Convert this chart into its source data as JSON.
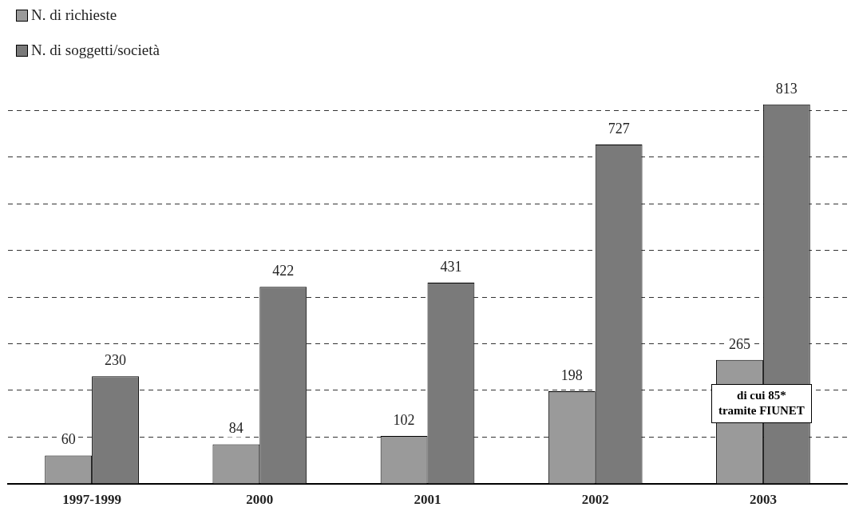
{
  "chart_data": {
    "type": "bar",
    "categories": [
      "1997-1999",
      "2000",
      "2001",
      "2002",
      "2003"
    ],
    "series": [
      {
        "name": "N. di richieste",
        "color": "#9a9a9a",
        "values": [
          60,
          84,
          102,
          198,
          265
        ]
      },
      {
        "name": "N. di soggetti/società",
        "color": "#7a7a7a",
        "values": [
          230,
          422,
          431,
          727,
          813
        ]
      }
    ],
    "data_labels": true,
    "yticks": [
      {
        "value": 100,
        "label": null
      },
      {
        "value": 200,
        "label": null
      },
      {
        "value": 300,
        "label": null
      },
      {
        "value": 400,
        "label": null
      },
      {
        "value": 500,
        "label": null
      },
      {
        "value": 600,
        "label": null
      },
      {
        "value": 700,
        "label": null
      },
      {
        "value": 800,
        "label": null
      }
    ],
    "grid": "y",
    "legend": "top left",
    "tick_labels": "x",
    "annotations": [
      {
        "text": "di cui 85* tramite FIUNET",
        "x": "2003",
        "y": 265
      }
    ]
  }
}
